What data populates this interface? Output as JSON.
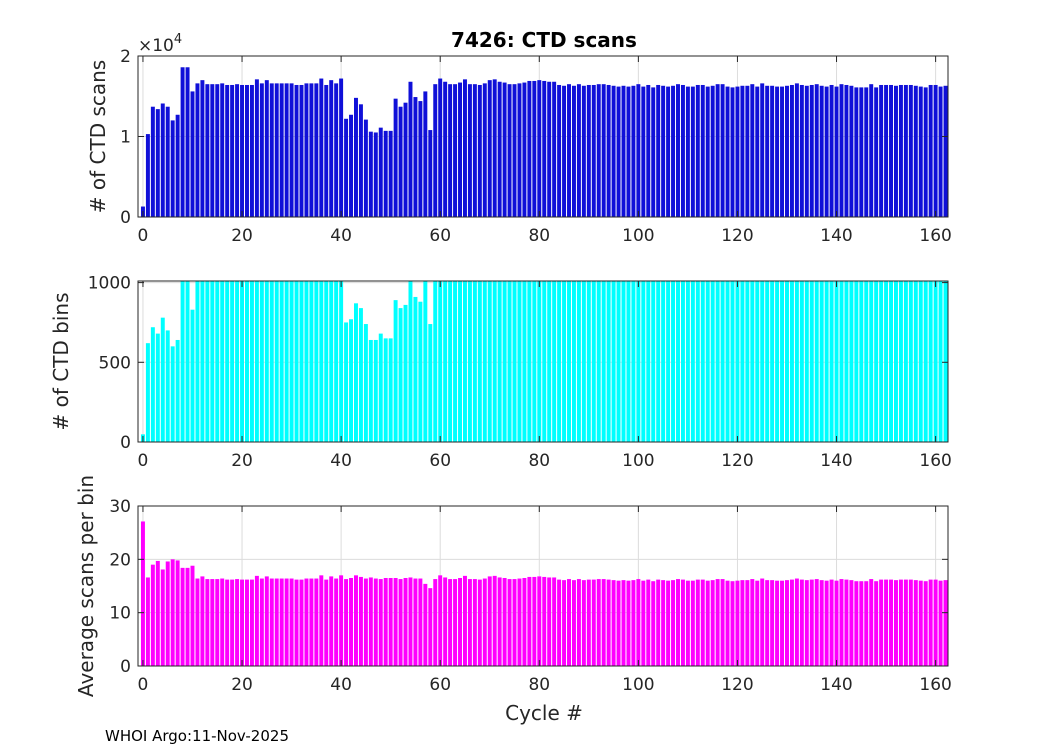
{
  "figure": {
    "title": "7426: CTD scans",
    "xlabel": "Cycle #",
    "footer": "WHOI Argo:11-Nov-2025",
    "exponent_base": "×10",
    "exponent_power": "4"
  },
  "chart_data": [
    {
      "type": "bar",
      "ylabel": "# of CTD scans",
      "color": "#1010d8",
      "xlim": [
        -1,
        162.5
      ],
      "ylim": [
        0,
        20000
      ],
      "xticks": [
        0,
        20,
        40,
        60,
        80,
        100,
        120,
        140,
        160
      ],
      "yticks": [
        0,
        10000,
        20000
      ],
      "ytick_labels": [
        "0",
        "1",
        "2"
      ],
      "grid": true,
      "x_start": 0,
      "values": [
        1300,
        10300,
        13700,
        13400,
        14100,
        13700,
        12000,
        12700,
        18600,
        18600,
        15600,
        16600,
        17000,
        16500,
        16500,
        16500,
        16600,
        16400,
        16400,
        16500,
        16400,
        16400,
        16400,
        17100,
        16600,
        17000,
        16600,
        16600,
        16600,
        16600,
        16600,
        16400,
        16400,
        16600,
        16600,
        16600,
        17200,
        16400,
        17000,
        16600,
        17200,
        12200,
        12700,
        14800,
        14000,
        12100,
        10600,
        10500,
        11100,
        10700,
        10700,
        14700,
        13700,
        14200,
        16800,
        14900,
        14400,
        15600,
        10800,
        16500,
        17200,
        16800,
        16500,
        16500,
        16700,
        17100,
        16500,
        16500,
        16400,
        16600,
        17000,
        17100,
        16800,
        16700,
        16500,
        16500,
        16600,
        16700,
        16900,
        16900,
        17000,
        16900,
        16800,
        16800,
        16400,
        16300,
        16500,
        16300,
        16500,
        16300,
        16400,
        16400,
        16500,
        16500,
        16400,
        16300,
        16200,
        16300,
        16200,
        16300,
        16500,
        16200,
        16400,
        16100,
        16400,
        16300,
        16200,
        16300,
        16500,
        16400,
        16200,
        16200,
        16400,
        16400,
        16200,
        16300,
        16500,
        16500,
        16200,
        16100,
        16200,
        16300,
        16300,
        16500,
        16200,
        16600,
        16300,
        16300,
        16200,
        16200,
        16300,
        16400,
        16600,
        16400,
        16300,
        16400,
        16500,
        16300,
        16200,
        16400,
        16200,
        16500,
        16400,
        16300,
        16100,
        16100,
        16100,
        16500,
        16100,
        16400,
        16400,
        16400,
        16300,
        16400,
        16400,
        16400,
        16300,
        16200,
        16100,
        16400,
        16400,
        16200,
        16300
      ]
    },
    {
      "type": "bar",
      "ylabel": "# of CTD bins",
      "color": "#00ffff",
      "xlim": [
        -1,
        162.5
      ],
      "ylim": [
        0,
        1010
      ],
      "xticks": [
        0,
        20,
        40,
        60,
        80,
        100,
        120,
        140,
        160
      ],
      "yticks": [
        0,
        500,
        1000
      ],
      "ytick_labels": [
        "0",
        "500",
        "1000"
      ],
      "grid": true,
      "x_start": 0,
      "values": [
        48,
        620,
        720,
        680,
        780,
        700,
        600,
        640,
        1010,
        1010,
        830,
        1010,
        1010,
        1010,
        1010,
        1010,
        1010,
        1010,
        1010,
        1010,
        1010,
        1010,
        1010,
        1010,
        1010,
        1010,
        1010,
        1010,
        1010,
        1010,
        1010,
        1010,
        1010,
        1010,
        1010,
        1010,
        1010,
        1010,
        1010,
        1010,
        1010,
        750,
        770,
        870,
        840,
        740,
        640,
        640,
        680,
        650,
        650,
        890,
        840,
        860,
        1010,
        910,
        880,
        1010,
        740,
        1010,
        1010,
        1010,
        1010,
        1010,
        1010,
        1010,
        1010,
        1010,
        1010,
        1010,
        1010,
        1010,
        1010,
        1010,
        1010,
        1010,
        1010,
        1010,
        1010,
        1010,
        1010,
        1010,
        1010,
        1010,
        1010,
        1010,
        1010,
        1010,
        1010,
        1010,
        1010,
        1010,
        1010,
        1010,
        1010,
        1010,
        1010,
        1010,
        1010,
        1010,
        1010,
        1010,
        1010,
        1010,
        1010,
        1010,
        1010,
        1010,
        1010,
        1010,
        1010,
        1010,
        1010,
        1010,
        1010,
        1010,
        1010,
        1010,
        1010,
        1010,
        1010,
        1010,
        1010,
        1010,
        1010,
        1010,
        1010,
        1010,
        1010,
        1010,
        1010,
        1010,
        1010,
        1010,
        1010,
        1010,
        1010,
        1010,
        1010,
        1010,
        1010,
        1010,
        1010,
        1010,
        1010,
        1010,
        1010,
        1010,
        1010,
        1010,
        1010,
        1010,
        1010,
        1010,
        1010,
        1010,
        1010,
        1010,
        1010,
        1010,
        1010,
        1010,
        1010
      ]
    },
    {
      "type": "bar",
      "ylabel": "Average scans per bin",
      "color": "#ff00ff",
      "xlim": [
        -1,
        162.5
      ],
      "ylim": [
        0,
        30
      ],
      "xticks": [
        0,
        20,
        40,
        60,
        80,
        100,
        120,
        140,
        160
      ],
      "yticks": [
        0,
        10,
        20,
        30
      ],
      "ytick_labels": [
        "0",
        "10",
        "20",
        "30"
      ],
      "grid": true,
      "x_start": 0,
      "values": [
        27.1,
        16.6,
        19.0,
        19.7,
        18.1,
        19.6,
        20.0,
        19.8,
        18.4,
        18.4,
        18.8,
        16.4,
        16.8,
        16.3,
        16.3,
        16.3,
        16.4,
        16.2,
        16.2,
        16.3,
        16.2,
        16.2,
        16.2,
        16.9,
        16.4,
        16.8,
        16.4,
        16.4,
        16.4,
        16.4,
        16.4,
        16.2,
        16.2,
        16.4,
        16.4,
        16.4,
        17.0,
        16.2,
        16.8,
        16.4,
        17.0,
        16.3,
        16.5,
        17.0,
        16.7,
        16.4,
        16.6,
        16.4,
        16.3,
        16.5,
        16.5,
        16.5,
        16.3,
        16.5,
        16.6,
        16.4,
        16.4,
        15.4,
        14.6,
        16.3,
        17.0,
        16.6,
        16.3,
        16.3,
        16.5,
        16.9,
        16.3,
        16.3,
        16.2,
        16.4,
        16.8,
        16.9,
        16.6,
        16.5,
        16.3,
        16.3,
        16.4,
        16.5,
        16.7,
        16.7,
        16.8,
        16.7,
        16.6,
        16.6,
        16.2,
        16.1,
        16.3,
        16.1,
        16.3,
        16.1,
        16.2,
        16.2,
        16.3,
        16.3,
        16.2,
        16.1,
        16.0,
        16.1,
        16.0,
        16.1,
        16.3,
        16.0,
        16.2,
        15.9,
        16.2,
        16.1,
        16.0,
        16.1,
        16.3,
        16.2,
        16.0,
        16.0,
        16.2,
        16.2,
        16.0,
        16.1,
        16.3,
        16.3,
        16.0,
        15.9,
        16.0,
        16.1,
        16.1,
        16.3,
        16.0,
        16.4,
        16.1,
        16.1,
        16.0,
        16.0,
        16.1,
        16.2,
        16.4,
        16.2,
        16.1,
        16.2,
        16.3,
        16.1,
        16.0,
        16.2,
        16.0,
        16.3,
        16.2,
        16.1,
        15.9,
        15.9,
        15.9,
        16.3,
        15.9,
        16.2,
        16.2,
        16.2,
        16.1,
        16.2,
        16.2,
        16.2,
        16.1,
        16.0,
        15.9,
        16.2,
        16.2,
        16.0,
        16.1
      ]
    }
  ]
}
